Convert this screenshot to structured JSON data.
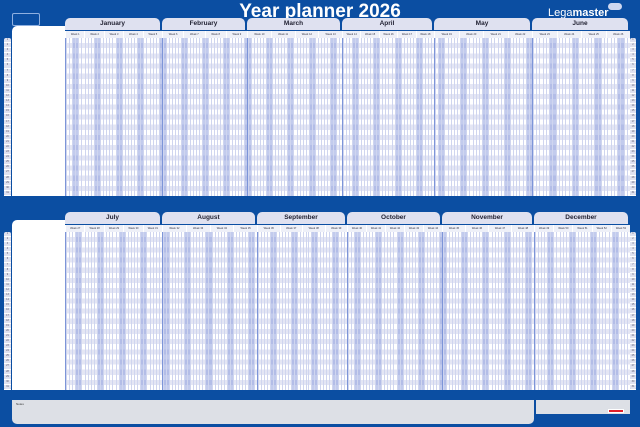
{
  "title": "Year planner 2026",
  "brand": {
    "name_light": "Lega",
    "name_bold": "master"
  },
  "year": 2026,
  "colors": {
    "background": "#0b4ea2",
    "tab": "#dfe1f0",
    "weekend": "#8c9ed8"
  },
  "rows": 31,
  "top_months": [
    {
      "name": "January",
      "weeks": [
        "Week 1",
        "Week 2",
        "Week 3",
        "Week 4",
        "Week 5"
      ]
    },
    {
      "name": "February",
      "weeks": [
        "Week 6",
        "Week 7",
        "Week 8",
        "Week 9"
      ]
    },
    {
      "name": "March",
      "weeks": [
        "Week 10",
        "Week 11",
        "Week 12",
        "Week 13"
      ]
    },
    {
      "name": "April",
      "weeks": [
        "Week 14",
        "Week 15",
        "Week 16",
        "Week 17",
        "Week 18"
      ]
    },
    {
      "name": "May",
      "weeks": [
        "Week 19",
        "Week 20",
        "Week 21",
        "Week 22"
      ]
    },
    {
      "name": "June",
      "weeks": [
        "Week 23",
        "Week 24",
        "Week 25",
        "Week 26"
      ]
    }
  ],
  "bottom_months": [
    {
      "name": "July",
      "weeks": [
        "Week 27",
        "Week 28",
        "Week 29",
        "Week 30",
        "Week 31"
      ]
    },
    {
      "name": "August",
      "weeks": [
        "Week 32",
        "Week 33",
        "Week 34",
        "Week 35"
      ]
    },
    {
      "name": "September",
      "weeks": [
        "Week 36",
        "Week 37",
        "Week 38",
        "Week 39"
      ]
    },
    {
      "name": "October",
      "weeks": [
        "Week 40",
        "Week 41",
        "Week 42",
        "Week 43",
        "Week 44"
      ]
    },
    {
      "name": "November",
      "weeks": [
        "Week 45",
        "Week 46",
        "Week 47",
        "Week 48"
      ]
    },
    {
      "name": "December",
      "weeks": [
        "Week 49",
        "Week 50",
        "Week 51",
        "Week 52",
        "Week 53"
      ]
    }
  ],
  "notes_label": "Notes"
}
